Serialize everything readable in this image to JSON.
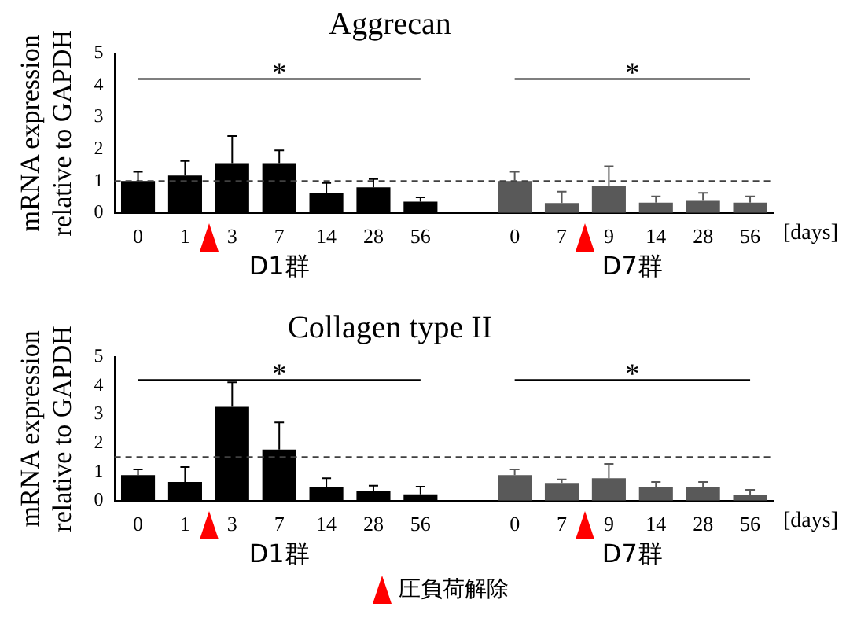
{
  "chart_data": [
    {
      "type": "bar",
      "title": "Aggrecan",
      "ylabel": "mRNA expression\nrelative to GAPDH",
      "xlabel": "[days]",
      "categories": [
        "0",
        "1",
        "3",
        "7",
        "14",
        "28",
        "56",
        null,
        "0",
        "7",
        "9",
        "14",
        "28",
        "56"
      ],
      "values": [
        1.0,
        1.17,
        1.56,
        1.56,
        0.63,
        0.8,
        0.35,
        null,
        1.0,
        0.31,
        0.84,
        0.32,
        0.38,
        0.32
      ],
      "colors": [
        "#000000",
        "#000000",
        "#000000",
        "#000000",
        "#000000",
        "#000000",
        "#000000",
        "#000000",
        "#595959",
        "#595959",
        "#595959",
        "#595959",
        "#595959",
        "#595959"
      ],
      "errors": [
        [
          1.0,
          1.29
        ],
        [
          1.17,
          1.63
        ],
        [
          1.56,
          2.41
        ],
        [
          1.56,
          1.96
        ],
        [
          0.63,
          0.94
        ],
        [
          0.8,
          1.06
        ],
        [
          0.35,
          0.49
        ],
        null,
        [
          1.0,
          1.29
        ],
        [
          0.31,
          0.67
        ],
        [
          0.84,
          1.46
        ],
        [
          0.32,
          0.52
        ],
        [
          0.38,
          0.63
        ],
        [
          0.32,
          0.52
        ]
      ],
      "ylim": [
        0,
        5
      ],
      "yticks": [
        0,
        1,
        2,
        3,
        4,
        5
      ],
      "ref_lines": [
        {
          "axis": "y",
          "value": 1,
          "line_style": "dashed",
          "color": "#404040"
        }
      ],
      "annotations": [
        "*",
        "*",
        "D1群",
        "D7群"
      ]
    },
    {
      "type": "bar",
      "title": "Collagen type II",
      "ylabel": "mRNA expression\nrelative to GAPDH",
      "xlabel": "[days]",
      "categories": [
        "0",
        "1",
        "3",
        "7",
        "14",
        "28",
        "56",
        null,
        "0",
        "7",
        "9",
        "14",
        "28",
        "56"
      ],
      "values": [
        0.89,
        0.65,
        3.26,
        1.78,
        0.49,
        0.32,
        0.22,
        null,
        0.89,
        0.62,
        0.78,
        0.46,
        0.48,
        0.2
      ],
      "colors": [
        "#000000",
        "#000000",
        "#000000",
        "#000000",
        "#000000",
        "#000000",
        "#000000",
        "#000000",
        "#595959",
        "#595959",
        "#595959",
        "#595959",
        "#595959",
        "#595959"
      ],
      "errors": [
        [
          0.89,
          1.09
        ],
        [
          0.65,
          1.17
        ],
        [
          3.26,
          4.12
        ],
        [
          1.78,
          2.72
        ],
        [
          0.49,
          0.78
        ],
        [
          0.32,
          0.52
        ],
        [
          0.22,
          0.49
        ],
        null,
        [
          0.89,
          1.09
        ],
        [
          0.62,
          0.74
        ],
        [
          0.78,
          1.28
        ],
        [
          0.46,
          0.65
        ],
        [
          0.48,
          0.65
        ],
        [
          0.2,
          0.38
        ]
      ],
      "ylim": [
        0,
        5
      ],
      "yticks": [
        0,
        1,
        2,
        3,
        4,
        5
      ],
      "ref_lines": [
        {
          "axis": "y",
          "value": 1.52,
          "line_style": "dashed",
          "color": "#404040"
        }
      ],
      "annotations": [
        "*",
        "*",
        "D1群",
        "D7群",
        "圧負荷解除"
      ]
    }
  ]
}
